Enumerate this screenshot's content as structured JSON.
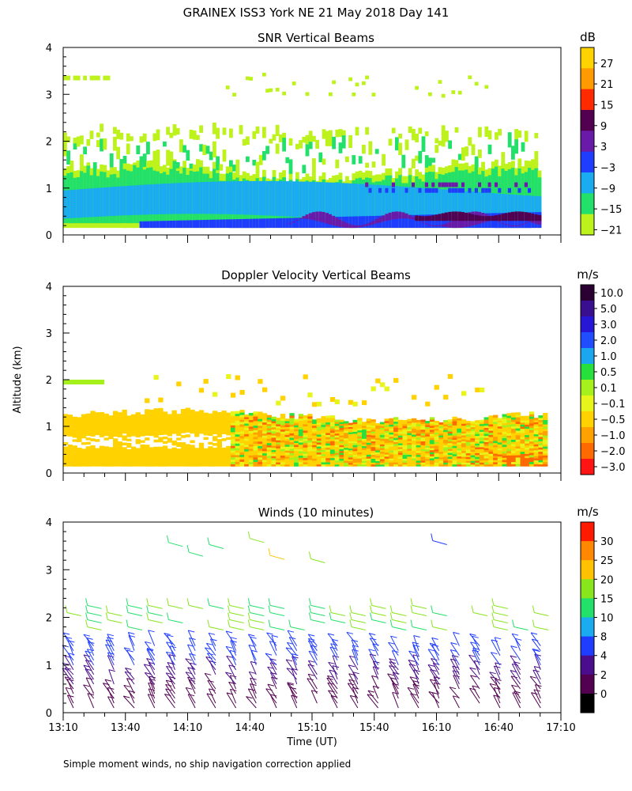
{
  "title": "GRAINEX ISS3 York NE  21 May 2018 Day 141",
  "footnote": "Simple moment winds, no ship navigation correction applied",
  "ylabel_shared": "Altitude (km)",
  "chart_data": [
    {
      "type": "heatmap",
      "title": "SNR Vertical Beams",
      "ylim": [
        0,
        4
      ],
      "yticks": [
        "0",
        "1",
        "2",
        "3",
        "4"
      ],
      "xlim": [
        "13:10",
        "17:10"
      ],
      "colorbar_unit": "dB",
      "colorbar_labels": [
        "27",
        "21",
        "15",
        "9",
        "3",
        "−3",
        "−9",
        "−15",
        "−21"
      ],
      "colorbar_colors": [
        "#ffd300",
        "#ff9a00",
        "#ff2a00",
        "#52004f",
        "#6a1aa8",
        "#1f3dff",
        "#1aabf0",
        "#22e06a",
        "#bdf21c"
      ]
    },
    {
      "type": "heatmap",
      "title": "Doppler Velocity Vertical Beams",
      "ylim": [
        0,
        4
      ],
      "yticks": [
        "0",
        "1",
        "2",
        "3",
        "4"
      ],
      "xlim": [
        "13:10",
        "17:10"
      ],
      "colorbar_unit": "m/s",
      "colorbar_labels": [
        "10.0",
        "5.0",
        "3.0",
        "2.0",
        "1.0",
        "0.5",
        "0.1",
        "−0.1",
        "−0.5",
        "−1.0",
        "−2.0",
        "−3.0"
      ],
      "colorbar_colors": [
        "#2a0033",
        "#3a0f8f",
        "#2616d6",
        "#1f4dff",
        "#1aa7f0",
        "#28e03c",
        "#a6f01c",
        "#e8f51a",
        "#ffd200",
        "#ffa200",
        "#ff6a00",
        "#ff1414"
      ]
    },
    {
      "type": "scatter",
      "title": "Winds (10 minutes)",
      "ylim": [
        0,
        4
      ],
      "yticks": [
        "0",
        "1",
        "2",
        "3",
        "4"
      ],
      "xlabel": "Time (UT)",
      "xticks": [
        "13:10",
        "13:40",
        "14:10",
        "14:40",
        "15:10",
        "15:40",
        "16:10",
        "16:40",
        "17:10"
      ],
      "colorbar_unit": "m/s",
      "colorbar_labels": [
        "30",
        "25",
        "20",
        "15",
        "10",
        "8",
        "4",
        "2",
        "0"
      ],
      "colorbar_colors": [
        "#ff1a00",
        "#ff8800",
        "#ffc200",
        "#88e61c",
        "#22e06a",
        "#1aabf0",
        "#1f3dff",
        "#4a0d8c",
        "#52004f",
        "#000000"
      ]
    }
  ]
}
